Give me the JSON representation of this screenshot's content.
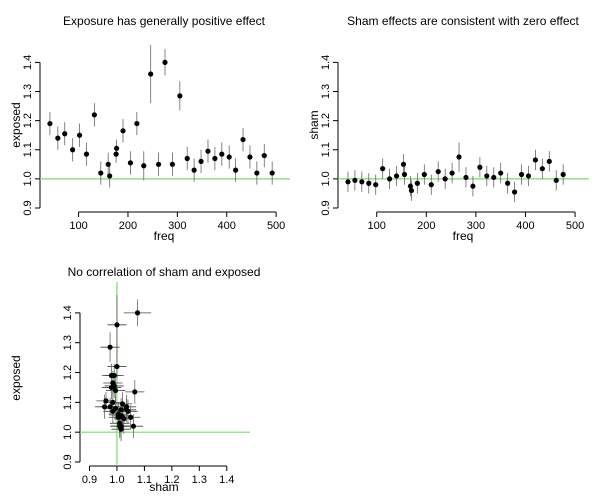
{
  "chart_data": [
    {
      "type": "scatter",
      "title": "Exposure has generally positive effect",
      "xlabel": "freq",
      "ylabel": "exposed",
      "xlim": [
        30,
        520
      ],
      "ylim": [
        0.9,
        1.47
      ],
      "x_ticks": [
        100,
        200,
        300,
        400,
        500
      ],
      "y_ticks": [
        0.9,
        1.0,
        1.1,
        1.2,
        1.3,
        1.4
      ],
      "reference_line": {
        "axis": "y",
        "value": 1.0,
        "color": "#7ddc6e"
      },
      "error_bars": "vertical",
      "points": [
        {
          "x": 42,
          "y": 1.19,
          "err": 0.04
        },
        {
          "x": 58,
          "y": 1.14,
          "err": 0.04
        },
        {
          "x": 72,
          "y": 1.155,
          "err": 0.04
        },
        {
          "x": 88,
          "y": 1.1,
          "err": 0.04
        },
        {
          "x": 102,
          "y": 1.15,
          "err": 0.04
        },
        {
          "x": 116,
          "y": 1.085,
          "err": 0.04
        },
        {
          "x": 132,
          "y": 1.22,
          "err": 0.04
        },
        {
          "x": 145,
          "y": 1.02,
          "err": 0.04
        },
        {
          "x": 160,
          "y": 1.05,
          "err": 0.04
        },
        {
          "x": 163,
          "y": 1.01,
          "err": 0.04
        },
        {
          "x": 176,
          "y": 1.085,
          "err": 0.03
        },
        {
          "x": 177,
          "y": 1.105,
          "err": 0.03
        },
        {
          "x": 190,
          "y": 1.165,
          "err": 0.04
        },
        {
          "x": 205,
          "y": 1.055,
          "err": 0.04
        },
        {
          "x": 218,
          "y": 1.19,
          "err": 0.04
        },
        {
          "x": 232,
          "y": 1.045,
          "err": 0.05
        },
        {
          "x": 246,
          "y": 1.36,
          "err": 0.1
        },
        {
          "x": 262,
          "y": 1.05,
          "err": 0.04
        },
        {
          "x": 275,
          "y": 1.4,
          "err": 0.045
        },
        {
          "x": 290,
          "y": 1.05,
          "err": 0.04
        },
        {
          "x": 305,
          "y": 1.285,
          "err": 0.05
        },
        {
          "x": 320,
          "y": 1.07,
          "err": 0.04
        },
        {
          "x": 334,
          "y": 1.03,
          "err": 0.04
        },
        {
          "x": 348,
          "y": 1.06,
          "err": 0.04
        },
        {
          "x": 362,
          "y": 1.095,
          "err": 0.04
        },
        {
          "x": 376,
          "y": 1.07,
          "err": 0.04
        },
        {
          "x": 390,
          "y": 1.085,
          "err": 0.04
        },
        {
          "x": 405,
          "y": 1.075,
          "err": 0.04
        },
        {
          "x": 418,
          "y": 1.03,
          "err": 0.04
        },
        {
          "x": 433,
          "y": 1.135,
          "err": 0.04
        },
        {
          "x": 447,
          "y": 1.075,
          "err": 0.04
        },
        {
          "x": 461,
          "y": 1.02,
          "err": 0.04
        },
        {
          "x": 476,
          "y": 1.08,
          "err": 0.04
        },
        {
          "x": 492,
          "y": 1.02,
          "err": 0.04
        }
      ]
    },
    {
      "type": "scatter",
      "title": "Sham effects are consistent with zero effect",
      "xlabel": "freq",
      "ylabel": "sham",
      "xlim": [
        30,
        520
      ],
      "ylim": [
        0.9,
        1.47
      ],
      "x_ticks": [
        100,
        200,
        300,
        400,
        500
      ],
      "y_ticks": [
        0.9,
        1.0,
        1.1,
        1.2,
        1.3,
        1.4
      ],
      "reference_line": {
        "axis": "y",
        "value": 1.0,
        "color": "#7ddc6e"
      },
      "error_bars": "vertical",
      "points": [
        {
          "x": 42,
          "y": 0.99,
          "err": 0.035
        },
        {
          "x": 56,
          "y": 0.995,
          "err": 0.035
        },
        {
          "x": 70,
          "y": 0.99,
          "err": 0.035
        },
        {
          "x": 84,
          "y": 0.985,
          "err": 0.035
        },
        {
          "x": 98,
          "y": 0.98,
          "err": 0.035
        },
        {
          "x": 112,
          "y": 1.035,
          "err": 0.035
        },
        {
          "x": 126,
          "y": 1.0,
          "err": 0.035
        },
        {
          "x": 140,
          "y": 1.01,
          "err": 0.035
        },
        {
          "x": 154,
          "y": 1.05,
          "err": 0.035
        },
        {
          "x": 156,
          "y": 1.015,
          "err": 0.035
        },
        {
          "x": 168,
          "y": 0.975,
          "err": 0.035
        },
        {
          "x": 170,
          "y": 0.96,
          "err": 0.035
        },
        {
          "x": 182,
          "y": 0.985,
          "err": 0.035
        },
        {
          "x": 196,
          "y": 1.015,
          "err": 0.035
        },
        {
          "x": 210,
          "y": 0.98,
          "err": 0.035
        },
        {
          "x": 224,
          "y": 1.025,
          "err": 0.035
        },
        {
          "x": 238,
          "y": 1.0,
          "err": 0.035
        },
        {
          "x": 252,
          "y": 1.02,
          "err": 0.035
        },
        {
          "x": 266,
          "y": 1.075,
          "err": 0.05
        },
        {
          "x": 280,
          "y": 1.005,
          "err": 0.035
        },
        {
          "x": 294,
          "y": 0.975,
          "err": 0.035
        },
        {
          "x": 308,
          "y": 1.04,
          "err": 0.035
        },
        {
          "x": 322,
          "y": 1.01,
          "err": 0.035
        },
        {
          "x": 336,
          "y": 1.005,
          "err": 0.035
        },
        {
          "x": 350,
          "y": 1.02,
          "err": 0.035
        },
        {
          "x": 364,
          "y": 0.985,
          "err": 0.035
        },
        {
          "x": 378,
          "y": 0.955,
          "err": 0.035
        },
        {
          "x": 392,
          "y": 1.015,
          "err": 0.035
        },
        {
          "x": 406,
          "y": 1.01,
          "err": 0.035
        },
        {
          "x": 420,
          "y": 1.065,
          "err": 0.035
        },
        {
          "x": 434,
          "y": 1.035,
          "err": 0.035
        },
        {
          "x": 448,
          "y": 1.06,
          "err": 0.035
        },
        {
          "x": 462,
          "y": 0.995,
          "err": 0.035
        },
        {
          "x": 476,
          "y": 1.015,
          "err": 0.035
        }
      ]
    },
    {
      "type": "scatter",
      "title": "No correlation of sham and exposed",
      "xlabel": "sham",
      "ylabel": "exposed",
      "xlim": [
        0.88,
        1.47
      ],
      "ylim": [
        0.9,
        1.47
      ],
      "x_ticks": [
        0.9,
        1.0,
        1.1,
        1.2,
        1.3,
        1.4
      ],
      "y_ticks": [
        0.9,
        1.0,
        1.1,
        1.2,
        1.3,
        1.4
      ],
      "reference_lines": [
        {
          "axis": "x",
          "value": 1.0,
          "color": "#7ddc6e"
        },
        {
          "axis": "y",
          "value": 1.0,
          "color": "#7ddc6e"
        }
      ],
      "error_bars": "both",
      "points": [
        {
          "x": 0.99,
          "y": 1.19,
          "xerr": 0.035,
          "yerr": 0.04
        },
        {
          "x": 0.995,
          "y": 1.14,
          "xerr": 0.035,
          "yerr": 0.04
        },
        {
          "x": 0.99,
          "y": 1.155,
          "xerr": 0.035,
          "yerr": 0.04
        },
        {
          "x": 0.985,
          "y": 1.1,
          "xerr": 0.035,
          "yerr": 0.04
        },
        {
          "x": 0.98,
          "y": 1.15,
          "xerr": 0.035,
          "yerr": 0.04
        },
        {
          "x": 1.035,
          "y": 1.085,
          "xerr": 0.035,
          "yerr": 0.04
        },
        {
          "x": 1.0,
          "y": 1.22,
          "xerr": 0.035,
          "yerr": 0.04
        },
        {
          "x": 1.01,
          "y": 1.02,
          "xerr": 0.035,
          "yerr": 0.04
        },
        {
          "x": 1.05,
          "y": 1.05,
          "xerr": 0.035,
          "yerr": 0.04
        },
        {
          "x": 1.015,
          "y": 1.01,
          "xerr": 0.035,
          "yerr": 0.04
        },
        {
          "x": 0.975,
          "y": 1.085,
          "xerr": 0.035,
          "yerr": 0.03
        },
        {
          "x": 0.96,
          "y": 1.105,
          "xerr": 0.035,
          "yerr": 0.03
        },
        {
          "x": 0.985,
          "y": 1.165,
          "xerr": 0.035,
          "yerr": 0.04
        },
        {
          "x": 1.015,
          "y": 1.055,
          "xerr": 0.035,
          "yerr": 0.04
        },
        {
          "x": 0.98,
          "y": 1.19,
          "xerr": 0.035,
          "yerr": 0.04
        },
        {
          "x": 1.025,
          "y": 1.045,
          "xerr": 0.035,
          "yerr": 0.05
        },
        {
          "x": 1.0,
          "y": 1.36,
          "xerr": 0.035,
          "yerr": 0.1
        },
        {
          "x": 1.02,
          "y": 1.05,
          "xerr": 0.035,
          "yerr": 0.04
        },
        {
          "x": 1.075,
          "y": 1.4,
          "xerr": 0.05,
          "yerr": 0.045
        },
        {
          "x": 1.005,
          "y": 1.05,
          "xerr": 0.035,
          "yerr": 0.04
        },
        {
          "x": 0.975,
          "y": 1.285,
          "xerr": 0.035,
          "yerr": 0.05
        },
        {
          "x": 1.04,
          "y": 1.07,
          "xerr": 0.035,
          "yerr": 0.04
        },
        {
          "x": 1.01,
          "y": 1.03,
          "xerr": 0.035,
          "yerr": 0.04
        },
        {
          "x": 1.005,
          "y": 1.06,
          "xerr": 0.035,
          "yerr": 0.04
        },
        {
          "x": 1.02,
          "y": 1.095,
          "xerr": 0.035,
          "yerr": 0.04
        },
        {
          "x": 0.985,
          "y": 1.07,
          "xerr": 0.035,
          "yerr": 0.04
        },
        {
          "x": 0.955,
          "y": 1.085,
          "xerr": 0.035,
          "yerr": 0.04
        },
        {
          "x": 1.015,
          "y": 1.075,
          "xerr": 0.035,
          "yerr": 0.04
        },
        {
          "x": 1.01,
          "y": 1.03,
          "xerr": 0.035,
          "yerr": 0.04
        },
        {
          "x": 1.065,
          "y": 1.135,
          "xerr": 0.035,
          "yerr": 0.04
        },
        {
          "x": 1.035,
          "y": 1.075,
          "xerr": 0.035,
          "yerr": 0.04
        },
        {
          "x": 1.06,
          "y": 1.02,
          "xerr": 0.035,
          "yerr": 0.04
        },
        {
          "x": 0.995,
          "y": 1.08,
          "xerr": 0.035,
          "yerr": 0.04
        },
        {
          "x": 1.015,
          "y": 1.02,
          "xerr": 0.035,
          "yerr": 0.04
        }
      ]
    }
  ]
}
